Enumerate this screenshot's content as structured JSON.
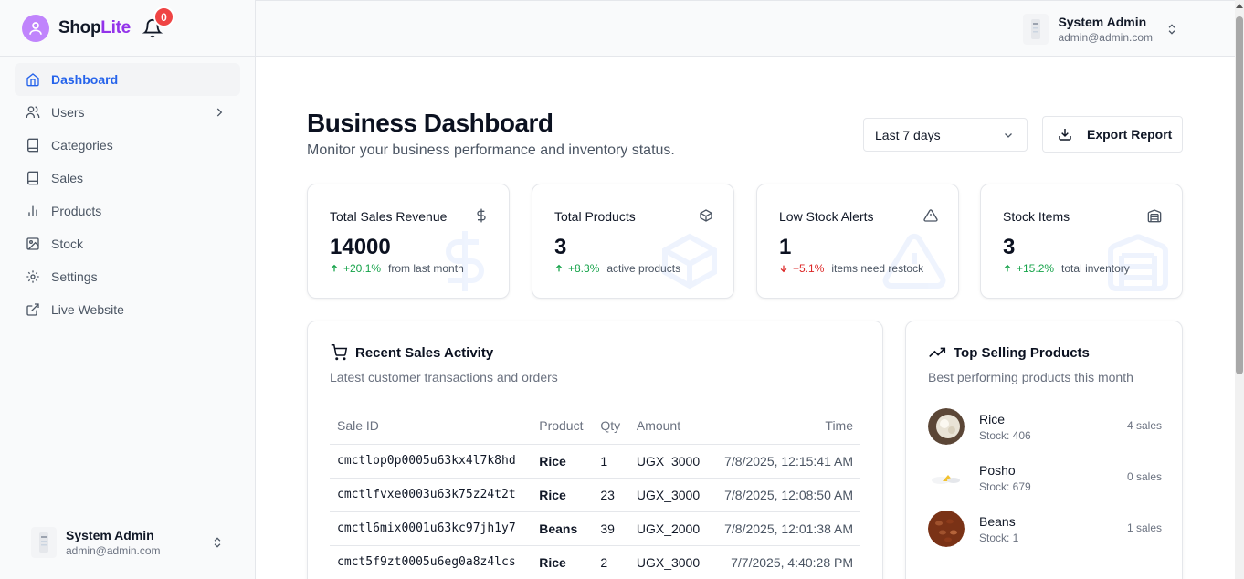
{
  "brand": {
    "name_a": "Shop",
    "name_b": "Lite"
  },
  "notifications": {
    "count": "0"
  },
  "sidebar": {
    "items": [
      {
        "label": "Dashboard",
        "icon": "home-icon"
      },
      {
        "label": "Users",
        "icon": "users-icon"
      },
      {
        "label": "Categories",
        "icon": "book-icon"
      },
      {
        "label": "Sales",
        "icon": "book-icon"
      },
      {
        "label": "Products",
        "icon": "bar-chart-icon"
      },
      {
        "label": "Stock",
        "icon": "image-icon"
      },
      {
        "label": "Settings",
        "icon": "gear-icon"
      },
      {
        "label": "Live Website",
        "icon": "external-link-icon"
      }
    ]
  },
  "user": {
    "name": "System Admin",
    "email": "admin@admin.com"
  },
  "page": {
    "title": "Business Dashboard",
    "subtitle": "Monitor your business performance and inventory status.",
    "range": "Last 7 days",
    "export_label": "Export Report"
  },
  "stats": [
    {
      "label": "Total Sales Revenue",
      "value": "14000",
      "pct": "+20.1%",
      "desc": "from last month",
      "dir": "up",
      "icon": "dollar-icon"
    },
    {
      "label": "Total Products",
      "value": "3",
      "pct": "+8.3%",
      "desc": "active products",
      "dir": "up",
      "icon": "package-icon"
    },
    {
      "label": "Low Stock Alerts",
      "value": "1",
      "pct": "−5.1%",
      "desc": "items need restock",
      "dir": "down",
      "icon": "alert-triangle-icon"
    },
    {
      "label": "Stock Items",
      "value": "3",
      "pct": "+15.2%",
      "desc": "total inventory",
      "dir": "up",
      "icon": "warehouse-icon"
    }
  ],
  "recent": {
    "title": "Recent Sales Activity",
    "subtitle": "Latest customer transactions and orders",
    "columns": [
      "Sale ID",
      "Product",
      "Qty",
      "Amount",
      "Time"
    ],
    "rows": [
      [
        "cmctlop0p0005u63kx4l7k8hd",
        "Rice",
        "1",
        "UGX_3000",
        "7/8/2025, 12:15:41 AM"
      ],
      [
        "cmctlfvxe0003u63k75z24t2t",
        "Rice",
        "23",
        "UGX_3000",
        "7/8/2025, 12:08:50 AM"
      ],
      [
        "cmctl6mix0001u63kc97jh1y7",
        "Beans",
        "39",
        "UGX_2000",
        "7/8/2025, 12:01:38 AM"
      ],
      [
        "cmct5f9zt0005u6eg0a8z4lcs",
        "Rice",
        "2",
        "UGX_3000",
        "7/7/2025, 4:40:28 PM"
      ]
    ]
  },
  "top": {
    "title": "Top Selling Products",
    "subtitle": "Best performing products this month",
    "items": [
      {
        "name": "Rice",
        "stock": "Stock: 406",
        "sales": "4 sales"
      },
      {
        "name": "Posho",
        "stock": "Stock: 679",
        "sales": "0 sales"
      },
      {
        "name": "Beans",
        "stock": "Stock: 1",
        "sales": "1 sales"
      }
    ]
  },
  "colors": {
    "accent": "#2563eb",
    "brand": "#9333ea",
    "up": "#16a34a",
    "down": "#dc2626",
    "badge": "#ef4444"
  }
}
